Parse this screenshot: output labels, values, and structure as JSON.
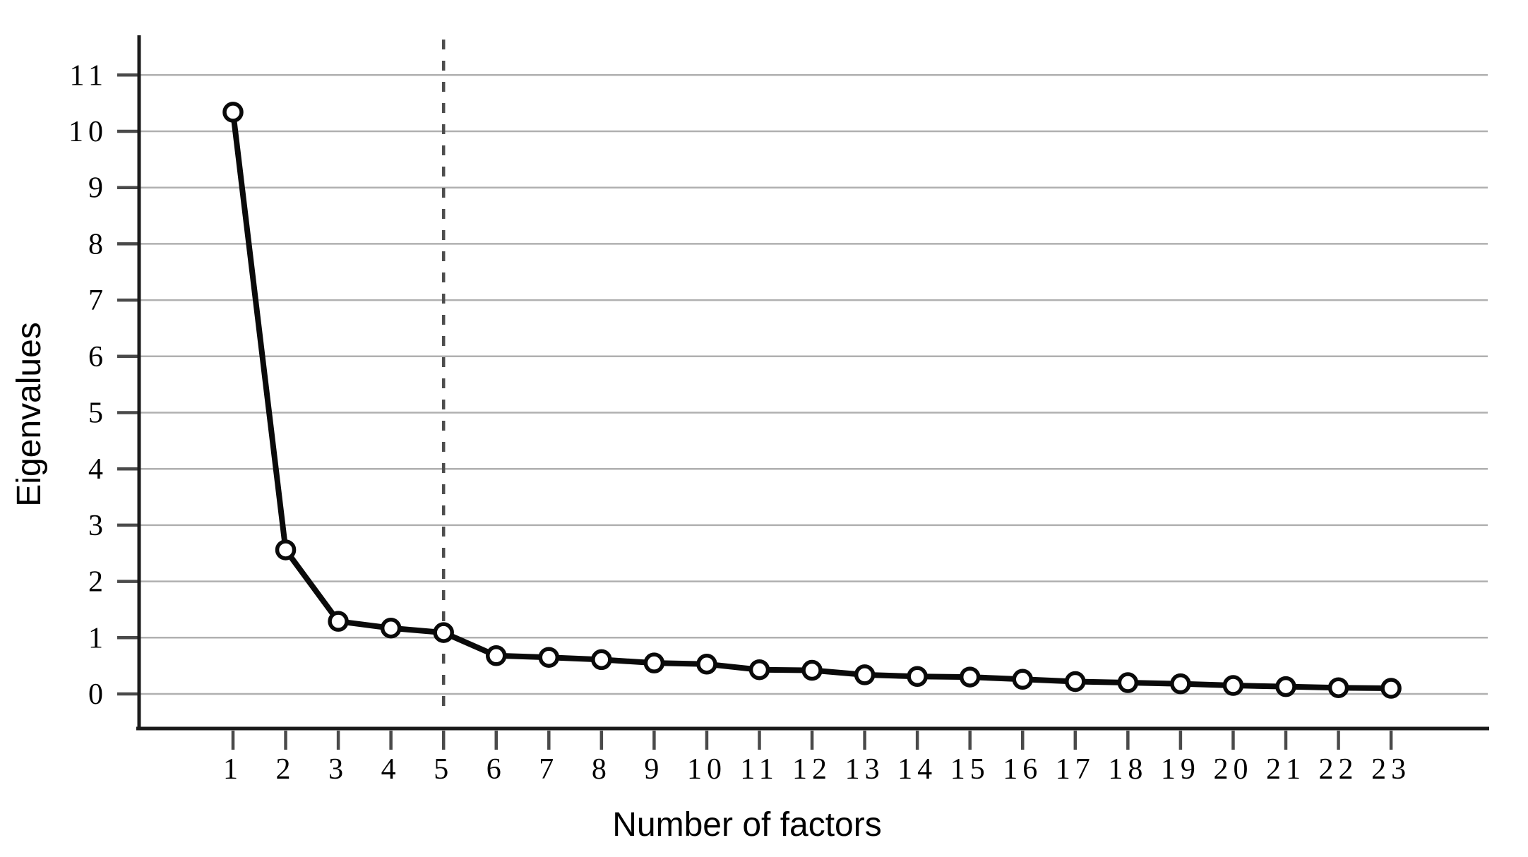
{
  "figure": {
    "background": "#ffffff"
  },
  "chart_data": {
    "type": "line",
    "title": "",
    "xlabel": "Number of factors",
    "ylabel": "Eigenvalues",
    "x": [
      1,
      2,
      3,
      4,
      5,
      6,
      7,
      8,
      9,
      10,
      11,
      12,
      13,
      14,
      15,
      16,
      17,
      18,
      19,
      20,
      21,
      22,
      23
    ],
    "series": [
      {
        "name": "eigenvalues",
        "values": [
          10.34,
          2.56,
          1.29,
          1.17,
          1.09,
          0.68,
          0.65,
          0.61,
          0.55,
          0.53,
          0.43,
          0.42,
          0.34,
          0.31,
          0.3,
          0.26,
          0.22,
          0.2,
          0.18,
          0.15,
          0.13,
          0.11,
          0.1
        ]
      }
    ],
    "x_tick_labels": [
      "1",
      "2",
      "3",
      "4",
      "5",
      "6",
      "7",
      "8",
      "9",
      "10",
      "11",
      "12",
      "13",
      "14",
      "15",
      "16",
      "17",
      "18",
      "19",
      "20",
      "21",
      "22",
      "23"
    ],
    "y_ticks": [
      0,
      1,
      2,
      3,
      4,
      5,
      6,
      7,
      8,
      9,
      10,
      11
    ],
    "ylim": [
      0,
      11.7
    ],
    "xlim": [
      0,
      24
    ],
    "grid": "horizontal-only",
    "legend": "none",
    "reference_line": {
      "axis": "x",
      "value": 5,
      "style": "dashed"
    },
    "marker_style": "open-circle",
    "colors": {
      "series": "#0a0a0a",
      "marker_fill": "#ffffff",
      "gridline": "#b0b0b0",
      "axis": "#1a1a1a",
      "dashed_reference": "#4d4d4d",
      "background": "#ffffff"
    }
  }
}
